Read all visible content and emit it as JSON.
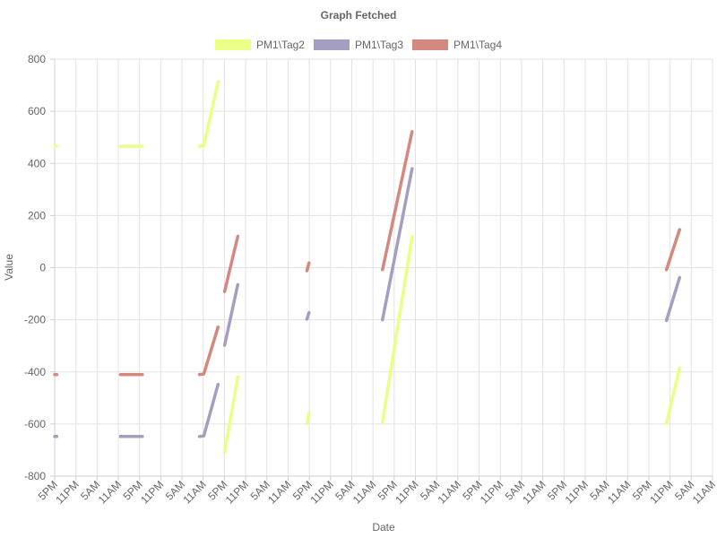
{
  "chart_data": {
    "type": "line",
    "title": "Graph Fetched",
    "xlabel": "Date",
    "ylabel": "Value",
    "ylim": [
      -800,
      800
    ],
    "yticks": [
      800,
      600,
      400,
      200,
      0,
      -200,
      -400,
      -600,
      -800
    ],
    "xlim": [
      0,
      30
    ],
    "x_tick_labels": [
      "5PM",
      "11PM",
      "5AM",
      "11AM",
      "5PM",
      "11PM",
      "5AM",
      "11AM",
      "5PM",
      "11PM",
      "5AM",
      "11AM",
      "5PM",
      "11PM",
      "5AM",
      "11AM",
      "5PM",
      "11PM",
      "5AM",
      "11AM",
      "5PM",
      "11PM",
      "5AM",
      "11AM",
      "5PM",
      "11PM",
      "5AM",
      "11AM",
      "5PM",
      "11PM",
      "5AM",
      "11AM"
    ],
    "grid": true,
    "legend_position": "top",
    "series": [
      {
        "name": "PM1\\Tag2",
        "color": "#ecfe84",
        "segments": [
          [
            [
              0.0,
              466
            ],
            [
              0.1,
              466
            ]
          ],
          [
            [
              3.0,
              466
            ],
            [
              4.0,
              466
            ]
          ],
          [
            [
              6.6,
              466
            ],
            [
              6.8,
              468
            ],
            [
              7.45,
              714
            ]
          ],
          [
            [
              7.75,
              -708
            ],
            [
              8.35,
              -420
            ]
          ],
          [
            [
              11.5,
              -598
            ],
            [
              11.6,
              -558
            ]
          ],
          [
            [
              14.95,
              -592
            ],
            [
              16.3,
              118
            ]
          ],
          [
            [
              27.9,
              -597
            ],
            [
              28.5,
              -385
            ]
          ]
        ]
      },
      {
        "name": "PM1\\Tag3",
        "color": "#a49ec3",
        "segments": [
          [
            [
              0.0,
              -648
            ],
            [
              0.1,
              -648
            ]
          ],
          [
            [
              3.0,
              -648
            ],
            [
              4.0,
              -648
            ]
          ],
          [
            [
              6.6,
              -648
            ],
            [
              6.8,
              -646
            ],
            [
              7.45,
              -448
            ]
          ],
          [
            [
              7.75,
              -298
            ],
            [
              8.35,
              -65
            ]
          ],
          [
            [
              11.5,
              -198
            ],
            [
              11.6,
              -172
            ]
          ],
          [
            [
              14.95,
              -200
            ],
            [
              16.3,
              380
            ]
          ],
          [
            [
              27.9,
              -203
            ],
            [
              28.5,
              -38
            ]
          ]
        ]
      },
      {
        "name": "PM1\\Tag4",
        "color": "#d3897f",
        "segments": [
          [
            [
              0.0,
              -410
            ],
            [
              0.1,
              -410
            ]
          ],
          [
            [
              3.0,
              -410
            ],
            [
              4.0,
              -410
            ]
          ],
          [
            [
              6.6,
              -410
            ],
            [
              6.8,
              -408
            ],
            [
              7.45,
              -228
            ]
          ],
          [
            [
              7.75,
              -92
            ],
            [
              8.35,
              120
            ]
          ],
          [
            [
              11.5,
              -12
            ],
            [
              11.6,
              18
            ]
          ],
          [
            [
              14.95,
              -8
            ],
            [
              16.3,
              522
            ]
          ],
          [
            [
              27.9,
              -8
            ],
            [
              28.5,
              146
            ]
          ]
        ]
      }
    ]
  }
}
